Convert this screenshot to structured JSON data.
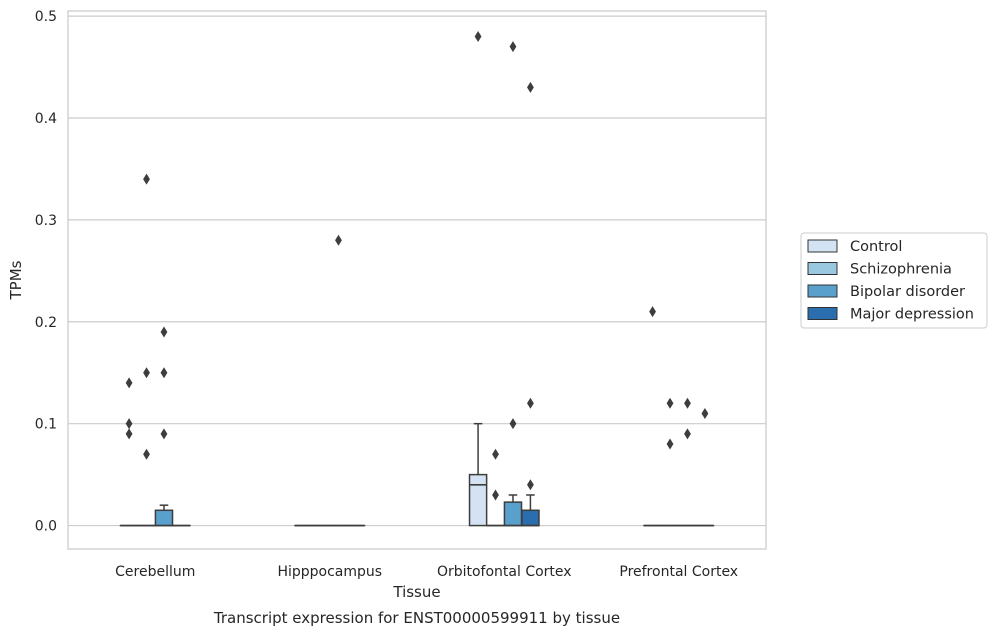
{
  "chart_data": {
    "type": "box",
    "caption": "Transcript expression for ENST00000599911 by tissue",
    "xlabel": "Tissue",
    "ylabel": "TPMs",
    "ylim": [
      -0.023,
      0.505
    ],
    "yticks": [
      0.0,
      0.1,
      0.2,
      0.3,
      0.4,
      0.5
    ],
    "ytick_labels": [
      "0.0",
      "0.1",
      "0.2",
      "0.3",
      "0.4",
      "0.5"
    ],
    "grid": "horizontal",
    "categories": [
      "Cerebellum",
      "Hipppocampus",
      "Orbitofontal Cortex",
      "Prefrontal Cortex"
    ],
    "legend": {
      "position": "right-center"
    },
    "series": [
      {
        "name": "Control",
        "color": "#d3e3f3",
        "boxes": [
          {
            "q1": 0,
            "median": 0,
            "q3": 0,
            "whisker_low": 0,
            "whisker_high": 0,
            "outliers": [
              0.14,
              0.1,
              0.09
            ]
          },
          {
            "q1": 0,
            "median": 0,
            "q3": 0,
            "whisker_low": 0,
            "whisker_high": 0,
            "outliers": []
          },
          {
            "q1": 0,
            "median": 0.04,
            "q3": 0.05,
            "whisker_low": 0,
            "whisker_high": 0.1,
            "outliers": [
              0.48
            ]
          },
          {
            "q1": 0,
            "median": 0,
            "q3": 0,
            "whisker_low": 0,
            "whisker_high": 0,
            "outliers": [
              0.21
            ]
          }
        ]
      },
      {
        "name": "Schizophrenia",
        "color": "#9ac8e0",
        "boxes": [
          {
            "q1": 0,
            "median": 0,
            "q3": 0,
            "whisker_low": 0,
            "whisker_high": 0,
            "outliers": [
              0.34,
              0.15,
              0.07
            ]
          },
          {
            "q1": 0,
            "median": 0,
            "q3": 0,
            "whisker_low": 0,
            "whisker_high": 0,
            "outliers": []
          },
          {
            "q1": 0,
            "median": 0,
            "q3": 0,
            "whisker_low": 0,
            "whisker_high": 0,
            "outliers": [
              0.07,
              0.03
            ]
          },
          {
            "q1": 0,
            "median": 0,
            "q3": 0,
            "whisker_low": 0,
            "whisker_high": 0,
            "outliers": [
              0.12,
              0.08
            ]
          }
        ]
      },
      {
        "name": "Bipolar disorder",
        "color": "#5aa0cd",
        "boxes": [
          {
            "q1": 0,
            "median": 0,
            "q3": 0.015,
            "whisker_low": 0,
            "whisker_high": 0.02,
            "outliers": [
              0.19,
              0.15,
              0.09
            ]
          },
          {
            "q1": 0,
            "median": 0,
            "q3": 0,
            "whisker_low": 0,
            "whisker_high": 0,
            "outliers": [
              0.28
            ]
          },
          {
            "q1": 0,
            "median": 0,
            "q3": 0.023,
            "whisker_low": 0,
            "whisker_high": 0.03,
            "outliers": [
              0.47,
              0.1
            ]
          },
          {
            "q1": 0,
            "median": 0,
            "q3": 0,
            "whisker_low": 0,
            "whisker_high": 0,
            "outliers": [
              0.12,
              0.09
            ]
          }
        ]
      },
      {
        "name": "Major depression",
        "color": "#2b6ead",
        "boxes": [
          {
            "q1": 0,
            "median": 0,
            "q3": 0,
            "whisker_low": 0,
            "whisker_high": 0,
            "outliers": []
          },
          {
            "q1": 0,
            "median": 0,
            "q3": 0,
            "whisker_low": 0,
            "whisker_high": 0,
            "outliers": []
          },
          {
            "q1": 0,
            "median": 0,
            "q3": 0.015,
            "whisker_low": 0,
            "whisker_high": 0.03,
            "outliers": [
              0.43,
              0.12,
              0.04
            ]
          },
          {
            "q1": 0,
            "median": 0,
            "q3": 0,
            "whisker_low": 0,
            "whisker_high": 0,
            "outliers": [
              0.11
            ]
          }
        ]
      }
    ]
  }
}
